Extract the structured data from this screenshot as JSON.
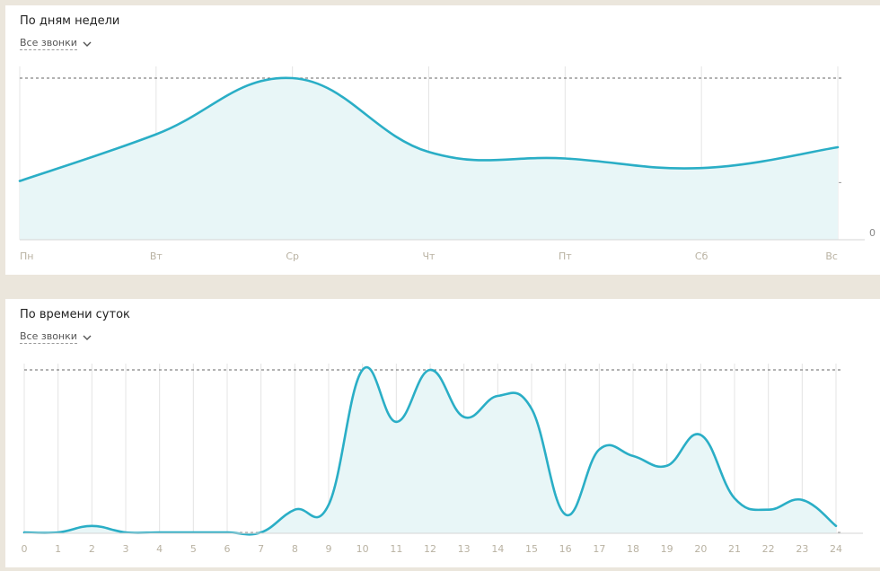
{
  "weekly": {
    "title": "По дням недели",
    "filter_label": "Все звонки",
    "zero_label": "0"
  },
  "hourly": {
    "title": "По времени суток",
    "filter_label": "Все звонки"
  },
  "colors": {
    "line": "#2aaec6",
    "fill": "#e8f6f7",
    "grid": "#e4e4e4",
    "tick": "#b9b2a2",
    "background": "#ebe6dc"
  },
  "icons": {
    "filter_toggle": "chevron-down-icon"
  },
  "chart_data": [
    {
      "type": "area",
      "categories": [
        "Пн",
        "Вт",
        "Ср",
        "Чт",
        "Пт",
        "Сб",
        "Вс"
      ],
      "values": [
        36,
        65,
        100,
        54,
        50,
        44,
        57
      ],
      "ylim": [
        0,
        100
      ],
      "reference_lines": [
        100,
        35
      ],
      "grid": true,
      "smooth": true
    },
    {
      "type": "area",
      "categories": [
        "0",
        "1",
        "2",
        "3",
        "4",
        "5",
        "6",
        "7",
        "8",
        "9",
        "10",
        "11",
        "12",
        "13",
        "14",
        "15",
        "16",
        "17",
        "18",
        "19",
        "20",
        "21",
        "22",
        "23",
        "24"
      ],
      "values": [
        0,
        0,
        4,
        0,
        0,
        0,
        0,
        0,
        14,
        17,
        100,
        68,
        100,
        71,
        84,
        76,
        11,
        51,
        47,
        41,
        60,
        21,
        14,
        20,
        4
      ],
      "ylim": [
        0,
        100
      ],
      "reference_lines": [
        100,
        0
      ],
      "grid": true,
      "smooth": true
    }
  ]
}
